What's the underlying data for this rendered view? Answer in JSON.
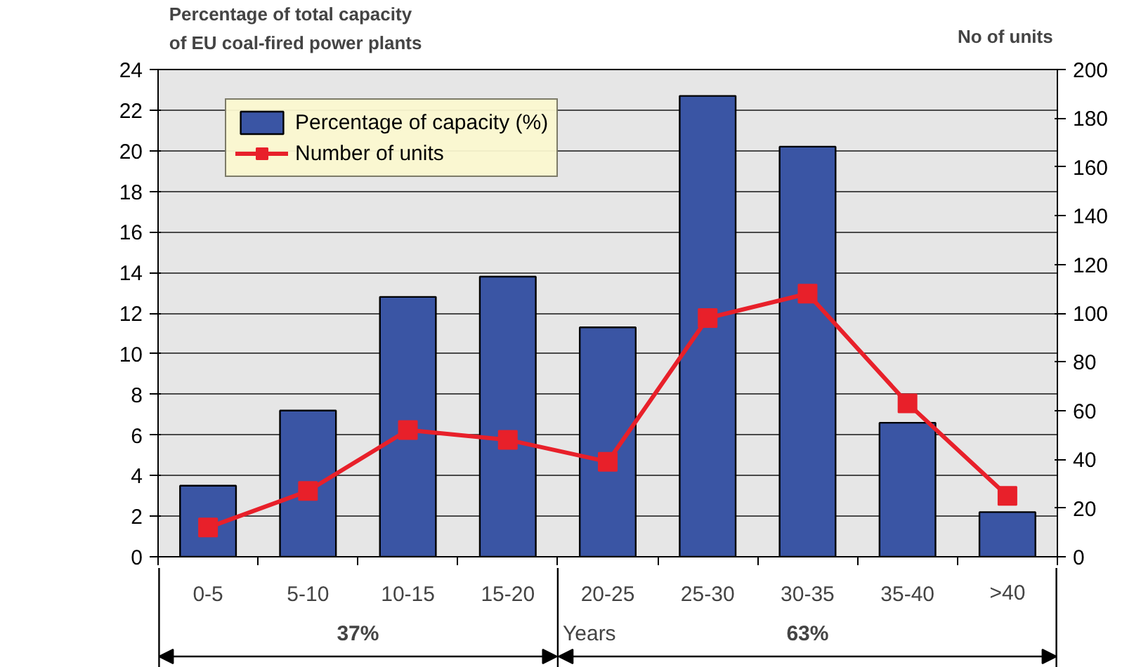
{
  "chart_data": {
    "type": "bar",
    "ylabel": "Percentage of total capacity\nof EU coal-fired power plants",
    "y2label": "No of units",
    "xlabel": "Years",
    "categories": [
      "0-5",
      "5-10",
      "10-15",
      "15-20",
      "20-25",
      "25-30",
      "30-35",
      "35-40",
      ">40"
    ],
    "series": [
      {
        "name": "Percentage of capacity (%)",
        "color": "#3a55a4",
        "values": [
          3.5,
          7.2,
          12.8,
          13.8,
          11.3,
          22.7,
          20.2,
          6.6,
          2.2
        ]
      },
      {
        "name": "Number of units",
        "type": "line",
        "axis": "y2",
        "color": "#e8202a",
        "marker": "square",
        "values": [
          12,
          27,
          52,
          48,
          39,
          98,
          108,
          63,
          25
        ]
      }
    ],
    "ylim": [
      0,
      24
    ],
    "yticks": [
      0,
      2,
      4,
      6,
      8,
      10,
      12,
      14,
      16,
      18,
      20,
      22,
      24
    ],
    "y2lim": [
      0,
      200
    ],
    "y2ticks": [
      0,
      20,
      40,
      60,
      80,
      100,
      120,
      140,
      160,
      180,
      200
    ],
    "annotations": [
      "37%",
      "63%"
    ],
    "grid": "y",
    "legend": "top left"
  }
}
